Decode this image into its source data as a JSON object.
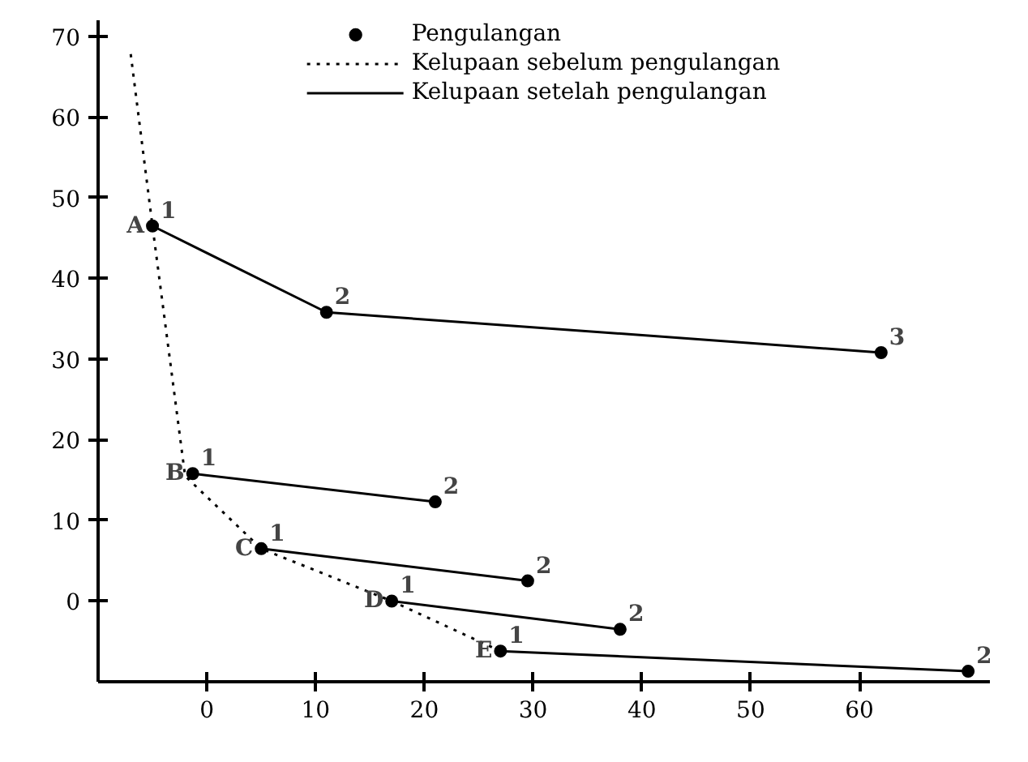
{
  "chart_data": {
    "type": "line",
    "xlim": [
      -10,
      72
    ],
    "ylim": [
      -10,
      72
    ],
    "xticks": [
      0,
      10,
      20,
      30,
      40,
      50,
      60
    ],
    "yticks": [
      {
        "value": 0,
        "label": "0"
      },
      10,
      20,
      30,
      40,
      50,
      60,
      70
    ],
    "grid": false,
    "legend": "top",
    "series": [
      {
        "name": "Pengulangan",
        "type": "scatter",
        "marker": "circle",
        "color": "#000000",
        "x": [
          -5,
          11,
          62,
          -1.3,
          21,
          5,
          29.5,
          17,
          38,
          27,
          70
        ],
        "values": [
          46.5,
          35.8,
          30.8,
          15.8,
          12.3,
          6.5,
          2.5,
          0,
          -3.5,
          -6.2,
          -8.7
        ]
      },
      {
        "name": "Kelupaan sebelum pengulangan",
        "line_style": "dotted",
        "color": "#000000",
        "x": [
          -7,
          -5,
          -2,
          5,
          17,
          27
        ],
        "values": [
          67.8,
          46.5,
          15.5,
          6.5,
          0,
          -6.2
        ]
      },
      {
        "name": "Kelupaan setelah pengulangan",
        "line_style": "solid",
        "color": "#000000",
        "x": [
          -5,
          11,
          62
        ],
        "values": [
          46.5,
          35.8,
          30.8
        ]
      },
      {
        "line_style": "solid",
        "color": "#000000",
        "x": [
          -1.3,
          21
        ],
        "values": [
          15.8,
          12.3
        ]
      },
      {
        "line_style": "solid",
        "color": "#000000",
        "x": [
          5,
          29.5
        ],
        "values": [
          6.5,
          2.5
        ]
      },
      {
        "line_style": "solid",
        "color": "#000000",
        "x": [
          17,
          38
        ],
        "values": [
          0,
          -3.5
        ]
      },
      {
        "line_style": "solid",
        "color": "#000000",
        "x": [
          27,
          70
        ],
        "values": [
          -6.2,
          -8.7
        ]
      }
    ],
    "annotations": [
      {
        "text": "1",
        "x": -5,
        "y": 46.5
      },
      {
        "text": "2",
        "x": 11,
        "y": 35.8
      },
      {
        "text": "3",
        "x": 62,
        "y": 30.8
      },
      {
        "text": "1",
        "x": -1.3,
        "y": 15.8
      },
      {
        "text": "2",
        "x": 21,
        "y": 12.3
      },
      {
        "text": "1",
        "x": 5,
        "y": 6.5
      },
      {
        "text": "2",
        "x": 29.5,
        "y": 2.5
      },
      {
        "text": "1",
        "x": 17,
        "y": 0
      },
      {
        "text": "2",
        "x": 38,
        "y": -3.5
      },
      {
        "text": "1",
        "x": 27,
        "y": -6.2
      },
      {
        "text": "2",
        "x": 70,
        "y": -8.7
      },
      {
        "text": "A",
        "x": -5,
        "y": 46.5
      },
      {
        "text": "B",
        "x": -1.3,
        "y": 15.8
      },
      {
        "text": "C",
        "x": 5,
        "y": 6.5
      },
      {
        "text": "D",
        "x": 17,
        "y": 0
      },
      {
        "text": "E",
        "x": 27,
        "y": -6.2
      }
    ]
  }
}
